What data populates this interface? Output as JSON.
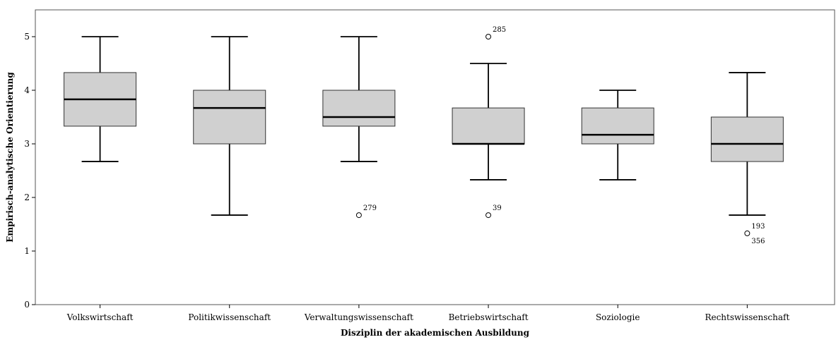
{
  "chart_data": {
    "type": "box",
    "title": "",
    "xlabel": "Disziplin der akademischen Ausbildung",
    "ylabel": "Empirisch-analytische Orientierung",
    "ylim": [
      0,
      5.5
    ],
    "yticks": [
      0,
      1,
      2,
      3,
      4,
      5
    ],
    "grid": false,
    "categories": [
      "Volkswirtschaft",
      "Politikwissenschaft",
      "Verwaltungswissenschaft",
      "Betriebswirtschaft",
      "Soziologie",
      "Rechtswissenschaft"
    ],
    "boxes": [
      {
        "category": "Volkswirtschaft",
        "whisker_low": 2.67,
        "q1": 3.33,
        "median": 3.83,
        "q3": 4.33,
        "whisker_high": 5.0,
        "outliers": []
      },
      {
        "category": "Politikwissenschaft",
        "whisker_low": 1.67,
        "q1": 3.0,
        "median": 3.67,
        "q3": 4.0,
        "whisker_high": 5.0,
        "outliers": []
      },
      {
        "category": "Verwaltungswissenschaft",
        "whisker_low": 2.67,
        "q1": 3.33,
        "median": 3.5,
        "q3": 4.0,
        "whisker_high": 5.0,
        "outliers": [
          {
            "value": 1.67,
            "label": "279"
          }
        ]
      },
      {
        "category": "Betriebswirtschaft",
        "whisker_low": 2.33,
        "q1": 3.0,
        "median": 3.0,
        "q3": 3.67,
        "whisker_high": 4.5,
        "outliers": [
          {
            "value": 5.0,
            "label": "285"
          },
          {
            "value": 1.67,
            "label": "39"
          }
        ]
      },
      {
        "category": "Soziologie",
        "whisker_low": 2.33,
        "q1": 3.0,
        "median": 3.17,
        "q3": 3.67,
        "whisker_high": 4.0,
        "outliers": []
      },
      {
        "category": "Rechtswissenschaft",
        "whisker_low": 1.67,
        "q1": 2.67,
        "median": 3.0,
        "q3": 3.5,
        "whisker_high": 4.33,
        "outliers": [
          {
            "value": 1.33,
            "label": "193"
          },
          {
            "value": 1.33,
            "label": "356"
          }
        ]
      }
    ],
    "colors": {
      "box_fill": "#d0d0d0",
      "stroke": "#000000",
      "frame": "#555555"
    }
  }
}
